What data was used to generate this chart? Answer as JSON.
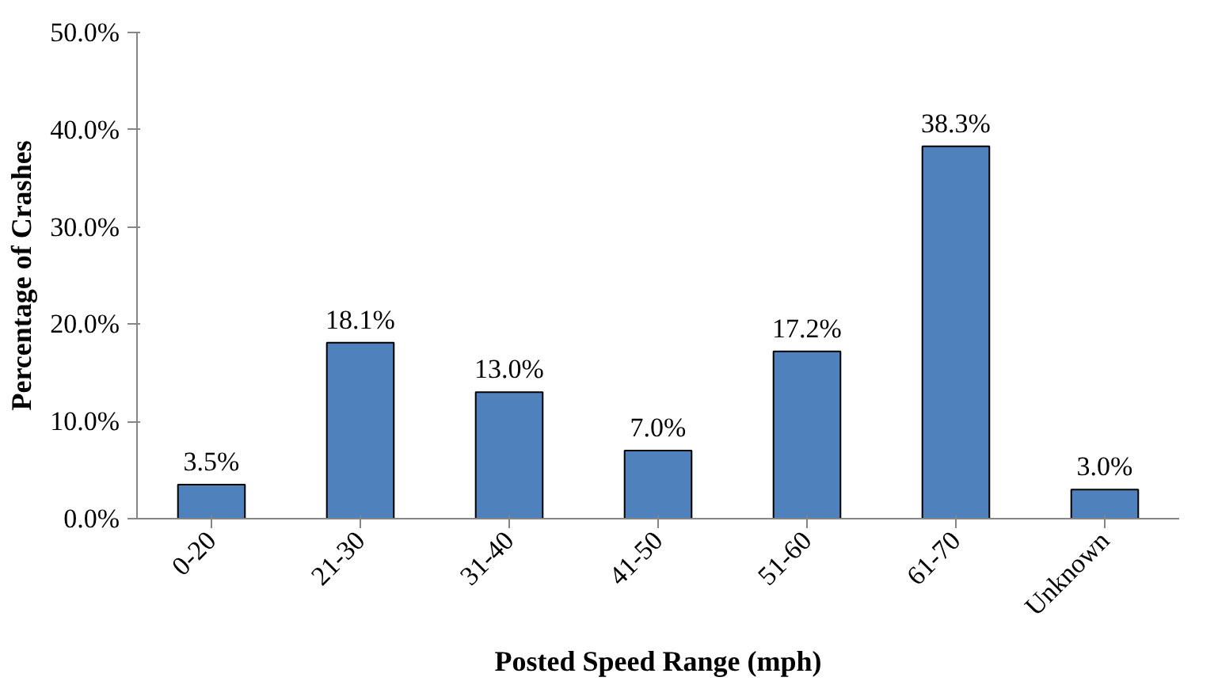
{
  "chart_data": {
    "type": "bar",
    "xlabel": "Posted Speed Range (mph)",
    "ylabel": "Percentage of Crashes",
    "categories": [
      "0-20",
      "21-30",
      "31-40",
      "41-50",
      "51-60",
      "61-70",
      "Unknown"
    ],
    "values": [
      3.5,
      18.1,
      13.0,
      7.0,
      17.2,
      38.3,
      3.0
    ],
    "value_labels": [
      "3.5%",
      "18.1%",
      "13.0%",
      "7.0%",
      "17.2%",
      "38.3%",
      "3.0%"
    ],
    "color": "#4f81bd",
    "ylim": [
      0,
      50
    ],
    "yticks": [
      {
        "value": 0,
        "label": "0.0%"
      },
      {
        "value": 10,
        "label": "10.0%"
      },
      {
        "value": 20,
        "label": "20.0%"
      },
      {
        "value": 30,
        "label": "30.0%"
      },
      {
        "value": 40,
        "label": "40.0%"
      },
      {
        "value": 50,
        "label": "50.0%"
      }
    ],
    "grid": false
  }
}
